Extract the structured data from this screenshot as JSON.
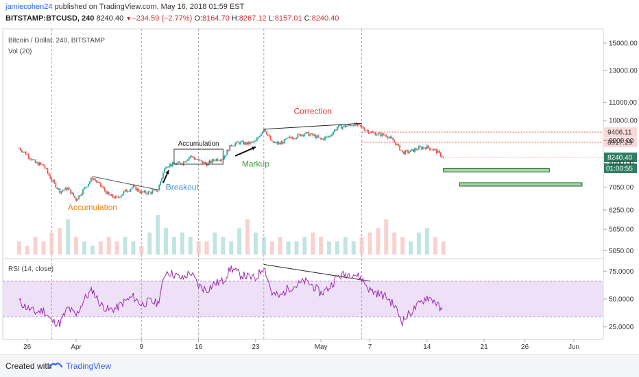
{
  "header": {
    "author": "jamiecohen24",
    "published_text": "published on TradingView.com, May 16, 2018 01:59 EST",
    "symbol": "BITSTAMP:BTCUSD, 240",
    "last": "8240.40",
    "change": "−234.59 (−2.77%)",
    "o_label": "O:",
    "o": "8164.70",
    "h_label": "H:",
    "h": "8267.12",
    "l_label": "L:",
    "l": "8157.01",
    "c_label": "C:",
    "c": "8240.40"
  },
  "panes": {
    "main_title": "Bitcoin / Dollar, 240, BITSTAMP",
    "vol_label": "Vol (20)",
    "rsi_label": "RSI (14, close)"
  },
  "footer": {
    "created": "Created with",
    "brand": "TradingView"
  },
  "colors": {
    "up": "#26a69a",
    "down": "#ef5350",
    "rsi": "#9c27b0",
    "rsi_band": "#ede0f7",
    "green_zone": "#4caf50",
    "accent": "#2962ff"
  },
  "chart_data": [
    {
      "type": "candlestick",
      "title": "Bitcoin / Dollar, 240, BITSTAMP",
      "y_scale": "log",
      "y_ticks": [
        15000,
        13000,
        11000,
        10000,
        9000,
        8000,
        7050,
        6250,
        5650,
        5050
      ],
      "y_tick_labels": [
        "15000.00",
        "13000.00",
        "11000.00",
        "10000.00",
        "9000.00",
        "8000.00",
        "7050.00",
        "6250.00",
        "5650.00",
        "5050.00"
      ],
      "ylim": [
        4950,
        16000
      ],
      "x_ticks": [
        {
          "label": "26",
          "date": "2018-03-26"
        },
        {
          "label": "Apr",
          "date": "2018-04-01"
        },
        {
          "label": "9",
          "date": "2018-04-09"
        },
        {
          "label": "16",
          "date": "2018-04-16"
        },
        {
          "label": "23",
          "date": "2018-04-23"
        },
        {
          "label": "May",
          "date": "2018-05-01"
        },
        {
          "label": "7",
          "date": "2018-05-07"
        },
        {
          "label": "14",
          "date": "2018-05-14"
        },
        {
          "label": "21",
          "date": "2018-05-21"
        },
        {
          "label": "26",
          "date": "2018-05-26"
        },
        {
          "label": "Jun",
          "date": "2018-06-01"
        }
      ],
      "price_path": [
        [
          "2018-03-25",
          8650
        ],
        [
          "2018-03-26",
          8350
        ],
        [
          "2018-03-27",
          8000
        ],
        [
          "2018-03-28",
          7900
        ],
        [
          "2018-03-29",
          7300
        ],
        [
          "2018-03-30",
          6900
        ],
        [
          "2018-03-31",
          7000
        ],
        [
          "2018-04-01",
          6600
        ],
        [
          "2018-04-02",
          7000
        ],
        [
          "2018-04-03",
          7400
        ],
        [
          "2018-04-04",
          7100
        ],
        [
          "2018-04-05",
          6750
        ],
        [
          "2018-04-06",
          6650
        ],
        [
          "2018-04-07",
          6900
        ],
        [
          "2018-04-08",
          7050
        ],
        [
          "2018-04-09",
          6850
        ],
        [
          "2018-04-10",
          6850
        ],
        [
          "2018-04-11",
          6950
        ],
        [
          "2018-04-12",
          7900
        ],
        [
          "2018-04-13",
          7950
        ],
        [
          "2018-04-14",
          8000
        ],
        [
          "2018-04-15",
          8300
        ],
        [
          "2018-04-16",
          8100
        ],
        [
          "2018-04-17",
          7950
        ],
        [
          "2018-04-18",
          8150
        ],
        [
          "2018-04-19",
          8200
        ],
        [
          "2018-04-20",
          8800
        ],
        [
          "2018-04-21",
          8900
        ],
        [
          "2018-04-22",
          8850
        ],
        [
          "2018-04-23",
          8950
        ],
        [
          "2018-04-24",
          9600
        ],
        [
          "2018-04-25",
          8900
        ],
        [
          "2018-04-26",
          8850
        ],
        [
          "2018-04-27",
          9100
        ],
        [
          "2018-04-28",
          9200
        ],
        [
          "2018-04-29",
          9350
        ],
        [
          "2018-04-30",
          9250
        ],
        [
          "2018-05-01",
          9050
        ],
        [
          "2018-05-02",
          9200
        ],
        [
          "2018-05-03",
          9650
        ],
        [
          "2018-05-04",
          9700
        ],
        [
          "2018-05-05",
          9800
        ],
        [
          "2018-05-06",
          9650
        ],
        [
          "2018-05-07",
          9400
        ],
        [
          "2018-05-08",
          9300
        ],
        [
          "2018-05-09",
          9250
        ],
        [
          "2018-05-10",
          8950
        ],
        [
          "2018-05-11",
          8450
        ],
        [
          "2018-05-12",
          8500
        ],
        [
          "2018-05-13",
          8650
        ],
        [
          "2018-05-14",
          8700
        ],
        [
          "2018-05-15",
          8550
        ],
        [
          "2018-05-16",
          8240
        ]
      ],
      "horizontal_lines": [
        {
          "value": 9406.11,
          "label": "9406.11",
          "style": "dotted",
          "color": "#ef5350"
        },
        {
          "value": 8917.29,
          "label": "8917.29",
          "style": "dotted",
          "color": "#ef5350"
        }
      ],
      "last_price_label": "8240.40",
      "countdown_label": "01:00:55",
      "zones": [
        {
          "from": "2018-05-16",
          "to": "2018-05-29",
          "value": 7700,
          "color": "#4caf50"
        },
        {
          "from": "2018-05-18",
          "to": "2018-06-02",
          "value": 7150,
          "color": "#4caf50"
        }
      ],
      "annotations": [
        {
          "text": "Accumulation",
          "date": "2018-04-03",
          "value": 6250,
          "color": "#e6861a"
        },
        {
          "text": "Breakout",
          "date": "2018-04-14",
          "value": 6950,
          "color": "#4a90c8"
        },
        {
          "text": "Accumulation",
          "date": "2018-04-16",
          "value": 8750,
          "color": "#222222"
        },
        {
          "text": "Markup",
          "date": "2018-04-23",
          "value": 7850,
          "color": "#43a047"
        },
        {
          "text": "Correction",
          "date": "2018-04-30",
          "value": 10350,
          "color": "#e53935"
        }
      ]
    },
    {
      "type": "bar",
      "title": "Vol (20)",
      "series": [
        {
          "values": [
            3,
            2,
            4,
            3,
            5,
            6,
            8,
            4,
            3,
            2,
            3,
            4,
            3,
            4,
            3,
            2,
            5,
            9,
            6,
            4,
            5,
            4,
            3,
            3,
            5,
            4,
            3,
            6,
            8,
            5,
            4,
            3,
            4,
            3,
            3,
            4,
            5,
            4,
            3,
            3,
            4,
            3,
            4,
            5,
            6,
            8,
            5,
            4,
            3,
            5,
            6,
            4,
            3
          ]
        }
      ]
    },
    {
      "type": "line",
      "title": "RSI (14, close)",
      "y_ticks": [
        75,
        50,
        25
      ],
      "y_tick_labels": [
        "75.0000",
        "50.0000",
        "25.0000"
      ],
      "ylim": [
        15,
        85
      ],
      "band": [
        30,
        70
      ],
      "values": [
        48,
        42,
        38,
        40,
        30,
        28,
        42,
        35,
        50,
        58,
        45,
        40,
        42,
        48,
        52,
        45,
        48,
        46,
        75,
        72,
        68,
        74,
        62,
        58,
        64,
        66,
        78,
        72,
        70,
        68,
        80,
        55,
        52,
        60,
        62,
        66,
        62,
        55,
        60,
        70,
        72,
        73,
        68,
        58,
        55,
        52,
        44,
        30,
        38,
        45,
        52,
        48,
        36
      ]
    }
  ]
}
